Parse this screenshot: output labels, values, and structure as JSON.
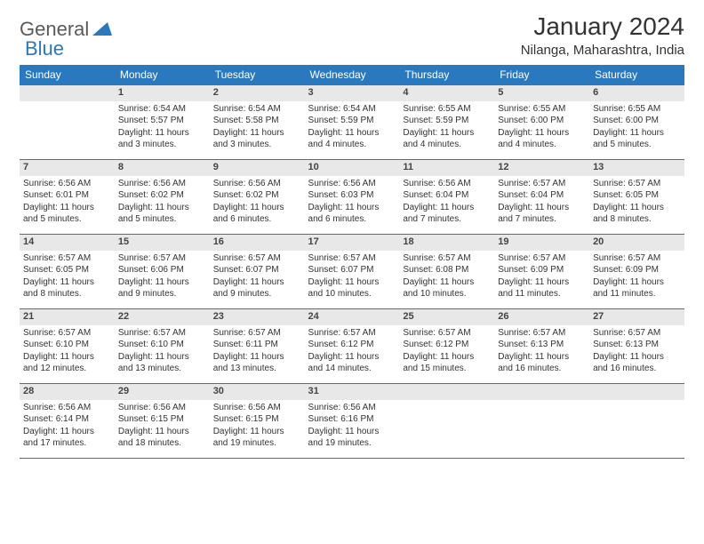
{
  "brand": {
    "part1": "General",
    "part2": "Blue"
  },
  "title": "January 2024",
  "location": "Nilanga, Maharashtra, India",
  "colors": {
    "header_bg": "#2a78bd",
    "header_text": "#ffffff",
    "daynum_bg": "#e8e8e8",
    "border": "#2a78bd",
    "body_text": "#333333",
    "logo_gray": "#5a5a5a",
    "logo_blue": "#2a78bd",
    "page_bg": "#ffffff"
  },
  "typography": {
    "title_fontsize": 28,
    "location_fontsize": 15,
    "weekday_fontsize": 12,
    "daynum_fontsize": 11,
    "detail_fontsize": 10
  },
  "weekdays": [
    "Sunday",
    "Monday",
    "Tuesday",
    "Wednesday",
    "Thursday",
    "Friday",
    "Saturday"
  ],
  "weeks": [
    [
      null,
      {
        "n": "1",
        "sr": "6:54 AM",
        "ss": "5:57 PM",
        "dl": "11 hours and 3 minutes."
      },
      {
        "n": "2",
        "sr": "6:54 AM",
        "ss": "5:58 PM",
        "dl": "11 hours and 3 minutes."
      },
      {
        "n": "3",
        "sr": "6:54 AM",
        "ss": "5:59 PM",
        "dl": "11 hours and 4 minutes."
      },
      {
        "n": "4",
        "sr": "6:55 AM",
        "ss": "5:59 PM",
        "dl": "11 hours and 4 minutes."
      },
      {
        "n": "5",
        "sr": "6:55 AM",
        "ss": "6:00 PM",
        "dl": "11 hours and 4 minutes."
      },
      {
        "n": "6",
        "sr": "6:55 AM",
        "ss": "6:00 PM",
        "dl": "11 hours and 5 minutes."
      }
    ],
    [
      {
        "n": "7",
        "sr": "6:56 AM",
        "ss": "6:01 PM",
        "dl": "11 hours and 5 minutes."
      },
      {
        "n": "8",
        "sr": "6:56 AM",
        "ss": "6:02 PM",
        "dl": "11 hours and 5 minutes."
      },
      {
        "n": "9",
        "sr": "6:56 AM",
        "ss": "6:02 PM",
        "dl": "11 hours and 6 minutes."
      },
      {
        "n": "10",
        "sr": "6:56 AM",
        "ss": "6:03 PM",
        "dl": "11 hours and 6 minutes."
      },
      {
        "n": "11",
        "sr": "6:56 AM",
        "ss": "6:04 PM",
        "dl": "11 hours and 7 minutes."
      },
      {
        "n": "12",
        "sr": "6:57 AM",
        "ss": "6:04 PM",
        "dl": "11 hours and 7 minutes."
      },
      {
        "n": "13",
        "sr": "6:57 AM",
        "ss": "6:05 PM",
        "dl": "11 hours and 8 minutes."
      }
    ],
    [
      {
        "n": "14",
        "sr": "6:57 AM",
        "ss": "6:05 PM",
        "dl": "11 hours and 8 minutes."
      },
      {
        "n": "15",
        "sr": "6:57 AM",
        "ss": "6:06 PM",
        "dl": "11 hours and 9 minutes."
      },
      {
        "n": "16",
        "sr": "6:57 AM",
        "ss": "6:07 PM",
        "dl": "11 hours and 9 minutes."
      },
      {
        "n": "17",
        "sr": "6:57 AM",
        "ss": "6:07 PM",
        "dl": "11 hours and 10 minutes."
      },
      {
        "n": "18",
        "sr": "6:57 AM",
        "ss": "6:08 PM",
        "dl": "11 hours and 10 minutes."
      },
      {
        "n": "19",
        "sr": "6:57 AM",
        "ss": "6:09 PM",
        "dl": "11 hours and 11 minutes."
      },
      {
        "n": "20",
        "sr": "6:57 AM",
        "ss": "6:09 PM",
        "dl": "11 hours and 11 minutes."
      }
    ],
    [
      {
        "n": "21",
        "sr": "6:57 AM",
        "ss": "6:10 PM",
        "dl": "11 hours and 12 minutes."
      },
      {
        "n": "22",
        "sr": "6:57 AM",
        "ss": "6:10 PM",
        "dl": "11 hours and 13 minutes."
      },
      {
        "n": "23",
        "sr": "6:57 AM",
        "ss": "6:11 PM",
        "dl": "11 hours and 13 minutes."
      },
      {
        "n": "24",
        "sr": "6:57 AM",
        "ss": "6:12 PM",
        "dl": "11 hours and 14 minutes."
      },
      {
        "n": "25",
        "sr": "6:57 AM",
        "ss": "6:12 PM",
        "dl": "11 hours and 15 minutes."
      },
      {
        "n": "26",
        "sr": "6:57 AM",
        "ss": "6:13 PM",
        "dl": "11 hours and 16 minutes."
      },
      {
        "n": "27",
        "sr": "6:57 AM",
        "ss": "6:13 PM",
        "dl": "11 hours and 16 minutes."
      }
    ],
    [
      {
        "n": "28",
        "sr": "6:56 AM",
        "ss": "6:14 PM",
        "dl": "11 hours and 17 minutes."
      },
      {
        "n": "29",
        "sr": "6:56 AM",
        "ss": "6:15 PM",
        "dl": "11 hours and 18 minutes."
      },
      {
        "n": "30",
        "sr": "6:56 AM",
        "ss": "6:15 PM",
        "dl": "11 hours and 19 minutes."
      },
      {
        "n": "31",
        "sr": "6:56 AM",
        "ss": "6:16 PM",
        "dl": "11 hours and 19 minutes."
      },
      null,
      null,
      null
    ]
  ],
  "labels": {
    "sunrise": "Sunrise:",
    "sunset": "Sunset:",
    "daylight": "Daylight:"
  }
}
